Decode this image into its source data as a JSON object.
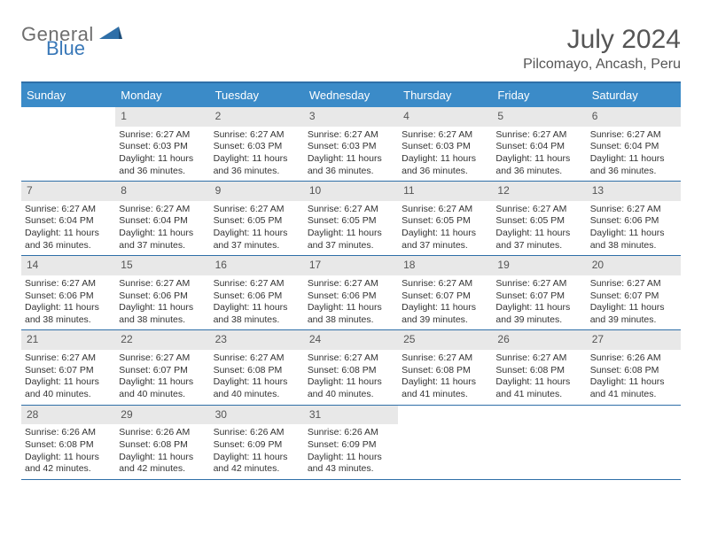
{
  "logo": {
    "text1": "General",
    "text2": "Blue"
  },
  "title": {
    "month": "July 2024",
    "location": "Pilcomayo, Ancash, Peru"
  },
  "colors": {
    "header_bg": "#3b8bc8",
    "header_text": "#ffffff",
    "border": "#2f6fa8",
    "daynum_bg": "#e8e8e8",
    "text": "#333333",
    "title_text": "#555555",
    "logo_gray": "#6e6e6e",
    "logo_blue": "#3978b8"
  },
  "day_names": [
    "Sunday",
    "Monday",
    "Tuesday",
    "Wednesday",
    "Thursday",
    "Friday",
    "Saturday"
  ],
  "weeks": [
    [
      {
        "n": "",
        "lines": [
          "",
          "",
          ""
        ]
      },
      {
        "n": "1",
        "lines": [
          "Sunrise: 6:27 AM",
          "Sunset: 6:03 PM",
          "Daylight: 11 hours and 36 minutes."
        ]
      },
      {
        "n": "2",
        "lines": [
          "Sunrise: 6:27 AM",
          "Sunset: 6:03 PM",
          "Daylight: 11 hours and 36 minutes."
        ]
      },
      {
        "n": "3",
        "lines": [
          "Sunrise: 6:27 AM",
          "Sunset: 6:03 PM",
          "Daylight: 11 hours and 36 minutes."
        ]
      },
      {
        "n": "4",
        "lines": [
          "Sunrise: 6:27 AM",
          "Sunset: 6:03 PM",
          "Daylight: 11 hours and 36 minutes."
        ]
      },
      {
        "n": "5",
        "lines": [
          "Sunrise: 6:27 AM",
          "Sunset: 6:04 PM",
          "Daylight: 11 hours and 36 minutes."
        ]
      },
      {
        "n": "6",
        "lines": [
          "Sunrise: 6:27 AM",
          "Sunset: 6:04 PM",
          "Daylight: 11 hours and 36 minutes."
        ]
      }
    ],
    [
      {
        "n": "7",
        "lines": [
          "Sunrise: 6:27 AM",
          "Sunset: 6:04 PM",
          "Daylight: 11 hours and 36 minutes."
        ]
      },
      {
        "n": "8",
        "lines": [
          "Sunrise: 6:27 AM",
          "Sunset: 6:04 PM",
          "Daylight: 11 hours and 37 minutes."
        ]
      },
      {
        "n": "9",
        "lines": [
          "Sunrise: 6:27 AM",
          "Sunset: 6:05 PM",
          "Daylight: 11 hours and 37 minutes."
        ]
      },
      {
        "n": "10",
        "lines": [
          "Sunrise: 6:27 AM",
          "Sunset: 6:05 PM",
          "Daylight: 11 hours and 37 minutes."
        ]
      },
      {
        "n": "11",
        "lines": [
          "Sunrise: 6:27 AM",
          "Sunset: 6:05 PM",
          "Daylight: 11 hours and 37 minutes."
        ]
      },
      {
        "n": "12",
        "lines": [
          "Sunrise: 6:27 AM",
          "Sunset: 6:05 PM",
          "Daylight: 11 hours and 37 minutes."
        ]
      },
      {
        "n": "13",
        "lines": [
          "Sunrise: 6:27 AM",
          "Sunset: 6:06 PM",
          "Daylight: 11 hours and 38 minutes."
        ]
      }
    ],
    [
      {
        "n": "14",
        "lines": [
          "Sunrise: 6:27 AM",
          "Sunset: 6:06 PM",
          "Daylight: 11 hours and 38 minutes."
        ]
      },
      {
        "n": "15",
        "lines": [
          "Sunrise: 6:27 AM",
          "Sunset: 6:06 PM",
          "Daylight: 11 hours and 38 minutes."
        ]
      },
      {
        "n": "16",
        "lines": [
          "Sunrise: 6:27 AM",
          "Sunset: 6:06 PM",
          "Daylight: 11 hours and 38 minutes."
        ]
      },
      {
        "n": "17",
        "lines": [
          "Sunrise: 6:27 AM",
          "Sunset: 6:06 PM",
          "Daylight: 11 hours and 38 minutes."
        ]
      },
      {
        "n": "18",
        "lines": [
          "Sunrise: 6:27 AM",
          "Sunset: 6:07 PM",
          "Daylight: 11 hours and 39 minutes."
        ]
      },
      {
        "n": "19",
        "lines": [
          "Sunrise: 6:27 AM",
          "Sunset: 6:07 PM",
          "Daylight: 11 hours and 39 minutes."
        ]
      },
      {
        "n": "20",
        "lines": [
          "Sunrise: 6:27 AM",
          "Sunset: 6:07 PM",
          "Daylight: 11 hours and 39 minutes."
        ]
      }
    ],
    [
      {
        "n": "21",
        "lines": [
          "Sunrise: 6:27 AM",
          "Sunset: 6:07 PM",
          "Daylight: 11 hours and 40 minutes."
        ]
      },
      {
        "n": "22",
        "lines": [
          "Sunrise: 6:27 AM",
          "Sunset: 6:07 PM",
          "Daylight: 11 hours and 40 minutes."
        ]
      },
      {
        "n": "23",
        "lines": [
          "Sunrise: 6:27 AM",
          "Sunset: 6:08 PM",
          "Daylight: 11 hours and 40 minutes."
        ]
      },
      {
        "n": "24",
        "lines": [
          "Sunrise: 6:27 AM",
          "Sunset: 6:08 PM",
          "Daylight: 11 hours and 40 minutes."
        ]
      },
      {
        "n": "25",
        "lines": [
          "Sunrise: 6:27 AM",
          "Sunset: 6:08 PM",
          "Daylight: 11 hours and 41 minutes."
        ]
      },
      {
        "n": "26",
        "lines": [
          "Sunrise: 6:27 AM",
          "Sunset: 6:08 PM",
          "Daylight: 11 hours and 41 minutes."
        ]
      },
      {
        "n": "27",
        "lines": [
          "Sunrise: 6:26 AM",
          "Sunset: 6:08 PM",
          "Daylight: 11 hours and 41 minutes."
        ]
      }
    ],
    [
      {
        "n": "28",
        "lines": [
          "Sunrise: 6:26 AM",
          "Sunset: 6:08 PM",
          "Daylight: 11 hours and 42 minutes."
        ]
      },
      {
        "n": "29",
        "lines": [
          "Sunrise: 6:26 AM",
          "Sunset: 6:08 PM",
          "Daylight: 11 hours and 42 minutes."
        ]
      },
      {
        "n": "30",
        "lines": [
          "Sunrise: 6:26 AM",
          "Sunset: 6:09 PM",
          "Daylight: 11 hours and 42 minutes."
        ]
      },
      {
        "n": "31",
        "lines": [
          "Sunrise: 6:26 AM",
          "Sunset: 6:09 PM",
          "Daylight: 11 hours and 43 minutes."
        ]
      },
      {
        "n": "",
        "lines": [
          "",
          "",
          ""
        ]
      },
      {
        "n": "",
        "lines": [
          "",
          "",
          ""
        ]
      },
      {
        "n": "",
        "lines": [
          "",
          "",
          ""
        ]
      }
    ]
  ]
}
